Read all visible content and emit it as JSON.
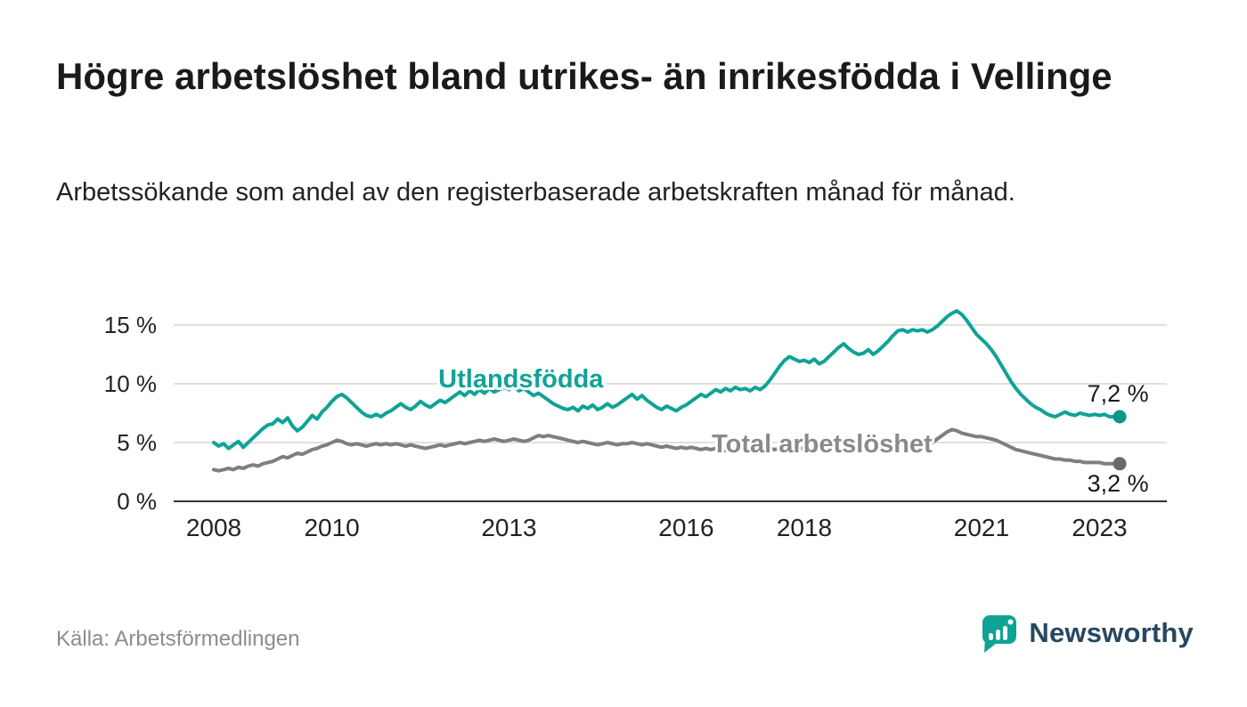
{
  "header": {
    "title": "Högre arbetslöshet bland utrikes- än inrikesfödda i Vellinge",
    "subtitle": "Arbetssökande som andel av den registerbaserade arbetskraften månad för månad."
  },
  "footer": {
    "source": "Källa: Arbetsförmedlingen",
    "brand": "Newsworthy"
  },
  "colors": {
    "accent_teal": "#0fa396",
    "total_gray": "#7f7f7f",
    "total_dot": "#696969",
    "grid": "#d6d6d6",
    "axis": "#333333",
    "tick_text": "#222222",
    "value_text": "#1a1a1a",
    "brand_text": "#28475f"
  },
  "chart_data": {
    "type": "line",
    "title": "Högre arbetslöshet bland utrikes- än inrikesfödda i Vellinge",
    "subtitle": "Arbetssökande som andel av den registerbaserade arbetskraften månad för månad.",
    "xlabel": "",
    "ylabel": "",
    "unit": "%",
    "x_start": 2008.0,
    "x_interval_months": 1,
    "x_ticks": [
      2008,
      2010,
      2013,
      2016,
      2018,
      2021,
      2023
    ],
    "x_tick_labels": [
      "2008",
      "2010",
      "2013",
      "2016",
      "2018",
      "2021",
      "2023"
    ],
    "y_ticks": [
      0,
      5,
      10,
      15
    ],
    "y_tick_labels": [
      "0 %",
      "5 %",
      "10 %",
      "15 %"
    ],
    "ylim": [
      0,
      17
    ],
    "grid": true,
    "legend_position": "inline-labels",
    "series": [
      {
        "name": "Utlandsfödda",
        "color": "#0fa396",
        "label_color": "#0fa396",
        "dot_color": "#0b9488",
        "end_label": "7,2 %",
        "end_value": 7.2,
        "label_year": 2013.2,
        "label_value": 9.7,
        "values": [
          5.0,
          4.7,
          4.9,
          4.5,
          4.8,
          5.1,
          4.6,
          5.0,
          5.4,
          5.8,
          6.2,
          6.5,
          6.6,
          7.0,
          6.7,
          7.1,
          6.4,
          6.0,
          6.3,
          6.8,
          7.3,
          7.0,
          7.6,
          8.0,
          8.5,
          8.9,
          9.1,
          8.8,
          8.4,
          8.0,
          7.6,
          7.3,
          7.2,
          7.4,
          7.2,
          7.5,
          7.7,
          8.0,
          8.3,
          8.0,
          7.8,
          8.1,
          8.5,
          8.2,
          8.0,
          8.3,
          8.6,
          8.4,
          8.7,
          9.0,
          9.3,
          9.0,
          9.4,
          9.1,
          9.5,
          9.2,
          9.6,
          9.3,
          9.5,
          9.7,
          9.5,
          9.8,
          9.4,
          9.6,
          9.3,
          9.0,
          9.2,
          8.9,
          8.6,
          8.3,
          8.1,
          7.9,
          7.8,
          8.0,
          7.7,
          8.1,
          7.9,
          8.2,
          7.8,
          8.0,
          8.3,
          8.0,
          8.2,
          8.5,
          8.8,
          9.1,
          8.7,
          9.0,
          8.6,
          8.3,
          8.0,
          7.8,
          8.1,
          7.9,
          7.7,
          8.0,
          8.2,
          8.5,
          8.8,
          9.1,
          8.9,
          9.2,
          9.5,
          9.3,
          9.6,
          9.4,
          9.7,
          9.5,
          9.6,
          9.4,
          9.7,
          9.5,
          9.8,
          10.3,
          10.9,
          11.5,
          12.0,
          12.3,
          12.1,
          11.9,
          12.0,
          11.8,
          12.1,
          11.7,
          11.9,
          12.3,
          12.7,
          13.1,
          13.4,
          13.0,
          12.7,
          12.5,
          12.6,
          12.9,
          12.5,
          12.8,
          13.2,
          13.6,
          14.1,
          14.5,
          14.6,
          14.4,
          14.6,
          14.5,
          14.6,
          14.4,
          14.6,
          14.9,
          15.3,
          15.7,
          16.0,
          16.2,
          15.9,
          15.4,
          14.8,
          14.2,
          13.8,
          13.4,
          12.9,
          12.3,
          11.6,
          10.9,
          10.2,
          9.6,
          9.1,
          8.7,
          8.3,
          8.0,
          7.8,
          7.5,
          7.3,
          7.2,
          7.4,
          7.6,
          7.4,
          7.3,
          7.5,
          7.4,
          7.3,
          7.4,
          7.3,
          7.4,
          7.2,
          7.2
        ]
      },
      {
        "name": "Total arbetslöshet",
        "color": "#7f7f7f",
        "label_color": "#8a8a8a",
        "dot_color": "#696969",
        "end_label": "3,2 %",
        "end_value": 3.2,
        "label_year": 2018.3,
        "label_value": 4.15,
        "values": [
          2.7,
          2.6,
          2.7,
          2.8,
          2.7,
          2.9,
          2.8,
          3.0,
          3.1,
          3.0,
          3.2,
          3.3,
          3.4,
          3.6,
          3.8,
          3.7,
          3.9,
          4.1,
          4.0,
          4.2,
          4.4,
          4.5,
          4.7,
          4.8,
          5.0,
          5.2,
          5.1,
          4.9,
          4.8,
          4.9,
          4.8,
          4.7,
          4.8,
          4.9,
          4.8,
          4.9,
          4.8,
          4.9,
          4.8,
          4.7,
          4.8,
          4.7,
          4.6,
          4.5,
          4.6,
          4.7,
          4.8,
          4.7,
          4.8,
          4.9,
          5.0,
          4.9,
          5.0,
          5.1,
          5.2,
          5.1,
          5.2,
          5.3,
          5.2,
          5.1,
          5.2,
          5.3,
          5.2,
          5.1,
          5.2,
          5.4,
          5.6,
          5.5,
          5.6,
          5.5,
          5.4,
          5.3,
          5.2,
          5.1,
          5.0,
          5.1,
          5.0,
          4.9,
          4.8,
          4.9,
          5.0,
          4.9,
          4.8,
          4.9,
          4.9,
          5.0,
          4.9,
          4.8,
          4.9,
          4.8,
          4.7,
          4.6,
          4.7,
          4.6,
          4.5,
          4.6,
          4.5,
          4.6,
          4.5,
          4.4,
          4.5,
          4.4,
          4.5,
          4.4,
          4.3,
          4.4,
          4.5,
          4.4,
          4.4,
          4.5,
          4.4,
          4.3,
          4.4,
          4.5,
          4.4,
          4.5,
          4.6,
          4.5,
          4.6,
          4.5,
          4.5,
          4.4,
          4.5,
          4.4,
          4.3,
          4.4,
          4.3,
          4.4,
          4.5,
          4.4,
          4.5,
          4.4,
          4.4,
          4.3,
          4.4,
          4.5,
          4.4,
          4.5,
          4.6,
          4.5,
          4.6,
          4.7,
          4.6,
          4.7,
          4.8,
          4.9,
          5.0,
          5.3,
          5.6,
          5.9,
          6.1,
          6.0,
          5.8,
          5.7,
          5.6,
          5.5,
          5.5,
          5.4,
          5.3,
          5.2,
          5.0,
          4.8,
          4.6,
          4.4,
          4.3,
          4.2,
          4.1,
          4.0,
          3.9,
          3.8,
          3.7,
          3.6,
          3.6,
          3.5,
          3.5,
          3.4,
          3.4,
          3.3,
          3.3,
          3.3,
          3.3,
          3.2,
          3.2,
          3.2
        ]
      }
    ]
  }
}
